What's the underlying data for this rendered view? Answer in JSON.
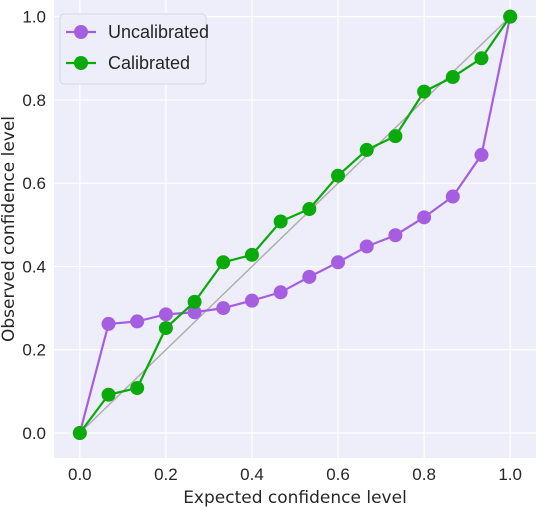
{
  "chart_data": {
    "type": "line",
    "xlabel": "Expected confidence level",
    "ylabel": "Observed confidence level",
    "xlim": [
      -0.06,
      1.06
    ],
    "ylim": [
      -0.06,
      1.04
    ],
    "xticks": [
      "0.0",
      "0.2",
      "0.4",
      "0.6",
      "0.8",
      "1.0"
    ],
    "yticks": [
      "0.0",
      "0.2",
      "0.4",
      "0.6",
      "0.8",
      "1.0"
    ],
    "grid": true,
    "legend_position": "top-left",
    "reference_line": {
      "x": [
        0,
        1
      ],
      "y": [
        0,
        1
      ],
      "color": "#b0b0b0"
    },
    "x": [
      0.0,
      0.0667,
      0.1333,
      0.2,
      0.2667,
      0.3333,
      0.4,
      0.4667,
      0.5333,
      0.6,
      0.6667,
      0.7333,
      0.8,
      0.8667,
      0.9333,
      1.0
    ],
    "series": [
      {
        "name": "Uncalibrated",
        "color": "#a65ee0",
        "values": [
          0.0,
          0.262,
          0.268,
          0.285,
          0.29,
          0.3,
          0.318,
          0.338,
          0.375,
          0.41,
          0.448,
          0.475,
          0.518,
          0.568,
          0.668,
          1.0
        ]
      },
      {
        "name": "Calibrated",
        "color": "#0aaa0a",
        "values": [
          0.0,
          0.092,
          0.108,
          0.252,
          0.315,
          0.41,
          0.428,
          0.508,
          0.538,
          0.618,
          0.68,
          0.713,
          0.82,
          0.855,
          0.9,
          1.0
        ]
      }
    ]
  }
}
